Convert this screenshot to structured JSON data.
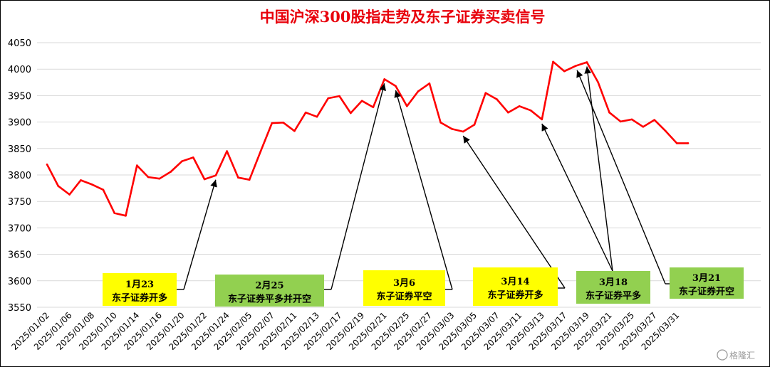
{
  "chart_data": {
    "type": "line",
    "title": "中国沪深300股指走势及东子证券买卖信号",
    "ylim": [
      3550,
      4050
    ],
    "yticks": [
      3550,
      3600,
      3650,
      3700,
      3750,
      3800,
      3850,
      3900,
      3950,
      4000,
      4050
    ],
    "grid": true,
    "legend": "none",
    "line_color": "#ff0000",
    "x_tick_labels": [
      "2025/01/02",
      "2025/01/06",
      "2025/01/08",
      "2025/01/10",
      "2025/01/14",
      "2025/01/16",
      "2025/01/20",
      "2025/01/22",
      "2025/01/24",
      "2025/02/05",
      "2025/02/07",
      "2025/02/11",
      "2025/02/13",
      "2025/02/17",
      "2025/02/19",
      "2025/02/21",
      "2025/02/25",
      "2025/02/27",
      "2025/03/03",
      "2025/03/05",
      "2025/03/07",
      "2025/03/11",
      "2025/03/13",
      "2025/03/17",
      "2025/03/19",
      "2025/03/21",
      "2025/03/25",
      "2025/03/27",
      "2025/03/31"
    ],
    "x": [
      "2025/01/02",
      "2025/01/03",
      "2025/01/06",
      "2025/01/07",
      "2025/01/08",
      "2025/01/09",
      "2025/01/10",
      "2025/01/13",
      "2025/01/14",
      "2025/01/15",
      "2025/01/16",
      "2025/01/17",
      "2025/01/20",
      "2025/01/21",
      "2025/01/22",
      "2025/01/23",
      "2025/01/24",
      "2025/01/27",
      "2025/02/05",
      "2025/02/06",
      "2025/02/07",
      "2025/02/10",
      "2025/02/11",
      "2025/02/12",
      "2025/02/13",
      "2025/02/14",
      "2025/02/17",
      "2025/02/18",
      "2025/02/19",
      "2025/02/20",
      "2025/02/21",
      "2025/02/24",
      "2025/02/25",
      "2025/02/26",
      "2025/02/27",
      "2025/02/28",
      "2025/03/03",
      "2025/03/04",
      "2025/03/05",
      "2025/03/06",
      "2025/03/07",
      "2025/03/10",
      "2025/03/11",
      "2025/03/12",
      "2025/03/13",
      "2025/03/14",
      "2025/03/17",
      "2025/03/18",
      "2025/03/19",
      "2025/03/20",
      "2025/03/21",
      "2025/03/24",
      "2025/03/25",
      "2025/03/26",
      "2025/03/27",
      "2025/03/28",
      "2025/03/31",
      "2025/04/01"
    ],
    "values": [
      3820,
      3779,
      3763,
      3790,
      3782,
      3772,
      3728,
      3723,
      3818,
      3796,
      3793,
      3806,
      3826,
      3833,
      3792,
      3799,
      3845,
      3795,
      3791,
      3845,
      3898,
      3899,
      3883,
      3918,
      3910,
      3945,
      3949,
      3917,
      3940,
      3928,
      3981,
      3968,
      3930,
      3958,
      3973,
      3899,
      3887,
      3882,
      3895,
      3955,
      3943,
      3918,
      3930,
      3922,
      3905,
      4014,
      3996,
      4006,
      4013,
      3975,
      3918,
      3901,
      3905,
      3891,
      3904,
      3883,
      3860,
      3860
    ],
    "annotations": [
      {
        "date": "1月23",
        "label": "东子证券开多",
        "color": "#ffff00",
        "target": "2025/01/23"
      },
      {
        "date": "2月25",
        "label": "东子证券平多并开空",
        "color": "#92d050",
        "target": "2025/02/21"
      },
      {
        "date": "3月6",
        "label": "东子证券平空",
        "color": "#ffff00",
        "target": "2025/02/24"
      },
      {
        "date": "3月14",
        "label": "东子证券开多",
        "color": "#ffff00",
        "target": "2025/03/04"
      },
      {
        "date": "3月18",
        "label": "东子证券平多",
        "color": "#92d050",
        "target": "2025/03/13"
      },
      {
        "date": "3月21",
        "label": "东子证券开空",
        "color": "#92d050",
        "target": "2025/03/18"
      }
    ],
    "extra_arrow_target": "2025/03/19"
  },
  "watermark": "格隆汇"
}
